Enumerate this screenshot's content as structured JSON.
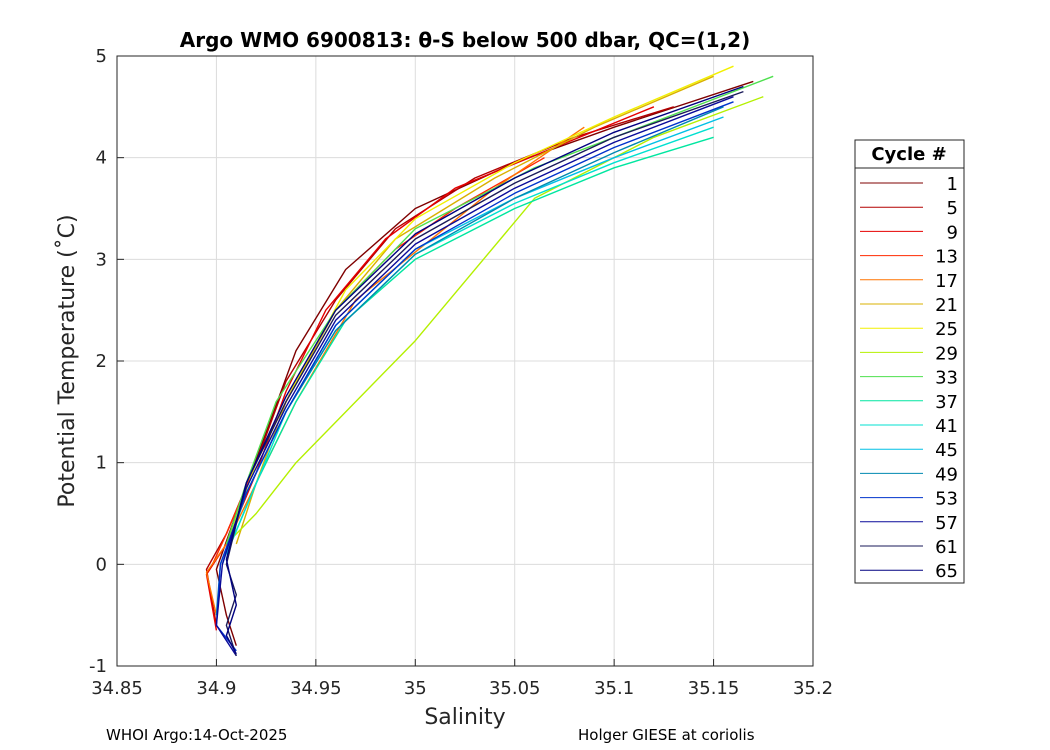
{
  "chart_data": {
    "type": "line",
    "title": "Argo WMO 6900813: θ-S below 500 dbar,  QC=(1,2)",
    "xlabel": "Salinity",
    "ylabel": "Potential Temperature (˚C)",
    "xlim": [
      34.85,
      35.2
    ],
    "ylim": [
      -1,
      5
    ],
    "xticks": [
      34.85,
      34.9,
      34.95,
      35,
      35.05,
      35.1,
      35.15,
      35.2
    ],
    "xtick_labels": [
      "34.85",
      "34.9",
      "34.95",
      "35",
      "35.05",
      "35.1",
      "35.15",
      "35.2"
    ],
    "yticks": [
      -1,
      0,
      1,
      2,
      3,
      4,
      5
    ],
    "ytick_labels": [
      "-1",
      "0",
      "1",
      "2",
      "3",
      "4",
      "5"
    ],
    "grid": true,
    "legend": {
      "title": "Cycle #",
      "position": "outside-right",
      "entries": [
        {
          "label": "1",
          "color": "#7f0000"
        },
        {
          "label": "5",
          "color": "#b30000"
        },
        {
          "label": "9",
          "color": "#e60000"
        },
        {
          "label": "13",
          "color": "#ff2a00"
        },
        {
          "label": "17",
          "color": "#ff7400"
        },
        {
          "label": "21",
          "color": "#d9b000"
        },
        {
          "label": "25",
          "color": "#f2f000"
        },
        {
          "label": "29",
          "color": "#b4f000"
        },
        {
          "label": "33",
          "color": "#4ee04e"
        },
        {
          "label": "37",
          "color": "#00e6a0"
        },
        {
          "label": "41",
          "color": "#00e0d0"
        },
        {
          "label": "45",
          "color": "#00c0e6"
        },
        {
          "label": "49",
          "color": "#0088b0"
        },
        {
          "label": "53",
          "color": "#0033cc"
        },
        {
          "label": "57",
          "color": "#0a0a9a"
        },
        {
          "label": "61",
          "color": "#1a1a5a"
        },
        {
          "label": "65",
          "color": "#000080"
        }
      ]
    },
    "series": [
      {
        "name": "1",
        "color": "#7f0000",
        "points": [
          [
            35.17,
            4.75
          ],
          [
            35.1,
            4.3
          ],
          [
            35.05,
            3.95
          ],
          [
            35.0,
            3.5
          ],
          [
            34.965,
            2.9
          ],
          [
            34.94,
            2.1
          ],
          [
            34.925,
            1.3
          ],
          [
            34.91,
            0.5
          ],
          [
            34.9,
            -0.05
          ],
          [
            34.905,
            -0.5
          ],
          [
            34.91,
            -0.8
          ]
        ]
      },
      {
        "name": "5",
        "color": "#b30000",
        "points": [
          [
            35.13,
            4.5
          ],
          [
            35.08,
            4.2
          ],
          [
            35.03,
            3.8
          ],
          [
            34.99,
            3.3
          ],
          [
            34.96,
            2.6
          ],
          [
            34.935,
            1.8
          ],
          [
            34.92,
            1.0
          ],
          [
            34.905,
            0.3
          ],
          [
            34.895,
            -0.05
          ],
          [
            34.9,
            -0.6
          ]
        ]
      },
      {
        "name": "9",
        "color": "#e60000",
        "points": [
          [
            35.12,
            4.5
          ],
          [
            35.07,
            4.1
          ],
          [
            35.02,
            3.7
          ],
          [
            34.985,
            3.2
          ],
          [
            34.955,
            2.5
          ],
          [
            34.935,
            1.7
          ],
          [
            34.92,
            0.9
          ],
          [
            34.905,
            0.2
          ],
          [
            34.895,
            -0.1
          ],
          [
            34.9,
            -0.65
          ]
        ]
      },
      {
        "name": "13",
        "color": "#ff2a00",
        "points": [
          [
            35.065,
            4.0
          ],
          [
            35.02,
            3.5
          ],
          [
            34.99,
            3.1
          ],
          [
            34.96,
            2.5
          ],
          [
            34.94,
            1.8
          ],
          [
            34.92,
            1.0
          ],
          [
            34.905,
            0.3
          ],
          [
            34.898,
            0.0
          ]
        ]
      },
      {
        "name": "17",
        "color": "#ff7400",
        "points": [
          [
            35.085,
            4.3
          ],
          [
            35.04,
            3.7
          ],
          [
            34.97,
            2.6
          ],
          [
            34.94,
            1.6
          ],
          [
            34.92,
            0.8
          ],
          [
            34.905,
            0.2
          ],
          [
            34.895,
            -0.08
          ],
          [
            34.9,
            -0.5
          ]
        ]
      },
      {
        "name": "21",
        "color": "#d9b000",
        "points": [
          [
            35.15,
            4.8
          ],
          [
            35.09,
            4.3
          ],
          [
            35.04,
            3.8
          ],
          [
            34.99,
            3.2
          ],
          [
            34.96,
            2.5
          ],
          [
            34.935,
            1.6
          ],
          [
            34.92,
            0.8
          ],
          [
            34.91,
            0.2
          ]
        ]
      },
      {
        "name": "25",
        "color": "#f2f000",
        "points": [
          [
            35.16,
            4.9
          ],
          [
            35.1,
            4.4
          ],
          [
            35.05,
            3.95
          ],
          [
            35.0,
            3.4
          ],
          [
            34.965,
            2.7
          ],
          [
            34.94,
            1.8
          ],
          [
            34.92,
            1.0
          ],
          [
            34.905,
            0.2
          ]
        ]
      },
      {
        "name": "29",
        "color": "#b4f000",
        "points": [
          [
            35.175,
            4.6
          ],
          [
            35.12,
            4.2
          ],
          [
            35.06,
            3.6
          ],
          [
            35.0,
            2.2
          ],
          [
            34.94,
            1.0
          ],
          [
            34.92,
            0.5
          ],
          [
            34.905,
            0.2
          ]
        ]
      },
      {
        "name": "33",
        "color": "#4ee04e",
        "points": [
          [
            35.18,
            4.8
          ],
          [
            35.12,
            4.35
          ],
          [
            35.06,
            3.9
          ],
          [
            35.0,
            3.3
          ],
          [
            34.96,
            2.5
          ],
          [
            34.93,
            1.6
          ],
          [
            34.915,
            0.8
          ],
          [
            34.905,
            0.2
          ]
        ]
      },
      {
        "name": "37",
        "color": "#00e6a0",
        "points": [
          [
            35.15,
            4.2
          ],
          [
            35.1,
            3.9
          ],
          [
            35.05,
            3.5
          ],
          [
            35.0,
            3.0
          ],
          [
            34.965,
            2.4
          ],
          [
            34.94,
            1.6
          ],
          [
            34.92,
            0.8
          ],
          [
            34.905,
            0.1
          ]
        ]
      },
      {
        "name": "41",
        "color": "#00e0d0",
        "points": [
          [
            35.15,
            4.3
          ],
          [
            35.1,
            3.95
          ],
          [
            35.05,
            3.55
          ],
          [
            35.0,
            3.05
          ],
          [
            34.96,
            2.3
          ],
          [
            34.935,
            1.5
          ],
          [
            34.918,
            0.7
          ],
          [
            34.905,
            0.1
          ]
        ]
      },
      {
        "name": "45",
        "color": "#00c0e6",
        "points": [
          [
            35.155,
            4.4
          ],
          [
            35.1,
            4.0
          ],
          [
            35.05,
            3.6
          ],
          [
            35.0,
            3.1
          ],
          [
            34.96,
            2.35
          ],
          [
            34.935,
            1.5
          ],
          [
            34.915,
            0.7
          ],
          [
            34.903,
            0.0
          ]
        ]
      },
      {
        "name": "49",
        "color": "#0088b0",
        "points": [
          [
            35.155,
            4.5
          ],
          [
            35.1,
            4.05
          ],
          [
            35.05,
            3.6
          ],
          [
            35.0,
            3.05
          ],
          [
            34.96,
            2.3
          ],
          [
            34.935,
            1.5
          ],
          [
            34.915,
            0.7
          ],
          [
            34.902,
            0.0
          ],
          [
            34.9,
            -0.5
          ]
        ]
      },
      {
        "name": "53",
        "color": "#0033cc",
        "points": [
          [
            35.16,
            4.55
          ],
          [
            35.1,
            4.1
          ],
          [
            35.05,
            3.65
          ],
          [
            35.0,
            3.1
          ],
          [
            34.96,
            2.35
          ],
          [
            34.935,
            1.5
          ],
          [
            34.915,
            0.7
          ],
          [
            34.902,
            0.0
          ],
          [
            34.9,
            -0.6
          ],
          [
            34.91,
            -0.85
          ]
        ]
      },
      {
        "name": "57",
        "color": "#0a0a9a",
        "points": [
          [
            35.16,
            4.6
          ],
          [
            35.1,
            4.15
          ],
          [
            35.05,
            3.7
          ],
          [
            35.0,
            3.15
          ],
          [
            34.96,
            2.4
          ],
          [
            34.935,
            1.55
          ],
          [
            34.915,
            0.75
          ],
          [
            34.903,
            0.0
          ],
          [
            34.9,
            -0.6
          ],
          [
            34.91,
            -0.9
          ]
        ]
      },
      {
        "name": "61",
        "color": "#1a1a5a",
        "points": [
          [
            35.165,
            4.65
          ],
          [
            35.1,
            4.2
          ],
          [
            35.05,
            3.75
          ],
          [
            35.0,
            3.2
          ],
          [
            34.96,
            2.45
          ],
          [
            34.935,
            1.6
          ],
          [
            34.915,
            0.8
          ],
          [
            34.905,
            0.0
          ],
          [
            34.91,
            -0.3
          ],
          [
            34.905,
            -0.6
          ],
          [
            34.91,
            -0.9
          ]
        ]
      },
      {
        "name": "65",
        "color": "#000080",
        "points": [
          [
            35.165,
            4.7
          ],
          [
            35.1,
            4.25
          ],
          [
            35.05,
            3.8
          ],
          [
            35.0,
            3.25
          ],
          [
            34.96,
            2.5
          ],
          [
            34.935,
            1.65
          ],
          [
            34.915,
            0.8
          ],
          [
            34.905,
            0.05
          ],
          [
            34.91,
            -0.4
          ],
          [
            34.905,
            -0.7
          ],
          [
            34.91,
            -0.88
          ]
        ]
      }
    ]
  },
  "footer": {
    "left": "WHOI Argo:14-Oct-2025",
    "right": "Holger GIESE at coriolis"
  }
}
